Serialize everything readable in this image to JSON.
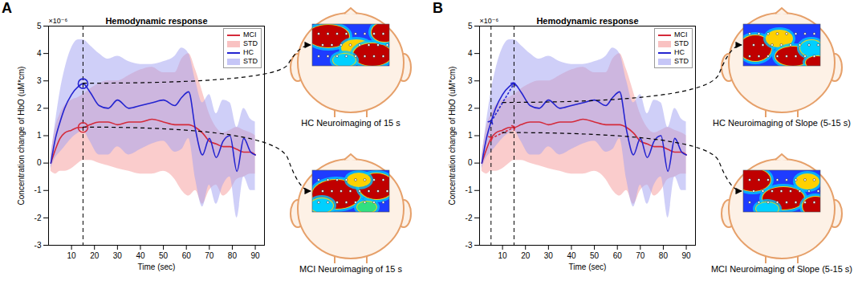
{
  "chart_data": [
    {
      "type": "line",
      "panel": "A",
      "title": "Hemodynamic response",
      "x_label": "Time (sec)",
      "y_label": "Concentration change of HbO (uM*cm)",
      "y_multiplier": "×10⁻⁶",
      "x": [
        1,
        3,
        5,
        7,
        10,
        13,
        15,
        18,
        22,
        26,
        30,
        35,
        40,
        45,
        50,
        55,
        58,
        61,
        64,
        67,
        70,
        73,
        76,
        79,
        82,
        85,
        88,
        90
      ],
      "xlim": [
        0,
        94
      ],
      "xticks": [
        10,
        20,
        30,
        40,
        50,
        60,
        70,
        80,
        90
      ],
      "ylim": [
        -3,
        5
      ],
      "yticks": [
        -3,
        -2,
        -1,
        0,
        1,
        2,
        3,
        4,
        5
      ],
      "legend": "top-right",
      "series": [
        {
          "name": "MCI",
          "color": "#d42a3a",
          "values": [
            0,
            0.5,
            0.9,
            1.1,
            1.2,
            1.3,
            1.3,
            1.4,
            1.5,
            1.5,
            1.4,
            1.5,
            1.5,
            1.6,
            1.5,
            1.4,
            1.4,
            1.4,
            1.3,
            1.1,
            0.8,
            0.7,
            0.6,
            0.6,
            0.5,
            0.4,
            0.4,
            0.3
          ],
          "std": {
            "name": "STD",
            "color": "#f59a9a",
            "lower": [
              -0.3,
              -0.4,
              -0.3,
              -0.3,
              -0.2,
              0,
              0.1,
              0.1,
              0,
              -0.1,
              -0.2,
              -0.3,
              -0.4,
              -0.4,
              -0.3,
              -0.6,
              -1.0,
              -1.2,
              -1.0,
              -1.5,
              -1.0,
              -0.8,
              -1.2,
              -1.0,
              -0.6,
              -0.5,
              -0.4,
              -0.4
            ],
            "upper": [
              0.3,
              1.3,
              1.8,
              2.1,
              2.3,
              2.4,
              2.5,
              2.7,
              2.9,
              3.0,
              3.0,
              3.2,
              3.4,
              3.5,
              3.3,
              3.3,
              3.8,
              4.0,
              3.4,
              2.6,
              1.8,
              1.3,
              1.1,
              1.2,
              1.3,
              1.2,
              1.1,
              1.0
            ]
          }
        },
        {
          "name": "HC",
          "color": "#2424d0",
          "values": [
            0,
            0.9,
            1.5,
            2.0,
            2.5,
            2.8,
            2.9,
            2.6,
            2.1,
            2.0,
            2.3,
            2.0,
            2.1,
            2.2,
            2.3,
            2.1,
            2.4,
            2.6,
            1.2,
            0.3,
            0.9,
            0.2,
            0.8,
            1.0,
            -0.3,
            0.9,
            0.4,
            0.3
          ],
          "std": {
            "name": "STD",
            "color": "#a0a0f2",
            "lower": [
              -0.2,
              0.2,
              0.4,
              0.6,
              0.9,
              1.1,
              1.2,
              0.8,
              0.3,
              0.3,
              0.6,
              0.3,
              0.5,
              0.7,
              0.8,
              0.4,
              0.5,
              0.9,
              -0.6,
              -1.6,
              -0.8,
              -1.5,
              -0.8,
              -0.5,
              -2.0,
              -0.5,
              -1.0,
              -1.0
            ],
            "upper": [
              0.2,
              1.5,
              2.6,
              3.4,
              4.2,
              4.5,
              4.5,
              4.3,
              4.0,
              3.8,
              3.9,
              3.7,
              3.6,
              3.6,
              3.7,
              3.9,
              4.2,
              4.0,
              3.0,
              2.2,
              2.5,
              1.8,
              2.3,
              2.2,
              1.3,
              2.0,
              1.6,
              1.5
            ]
          }
        }
      ],
      "highlight_x": [
        15
      ],
      "neuroimaging": [
        {
          "series": "HC",
          "label": "HC Neuroimaging of 15 s"
        },
        {
          "series": "MCI",
          "label": "MCI Neuroimaging of 15 s"
        }
      ]
    },
    {
      "type": "line",
      "panel": "B",
      "title": "Hemodynamic response",
      "x_label": "Time (sec)",
      "y_label": "Concentration change of HbO (uM*cm)",
      "y_multiplier": "×10⁻⁶",
      "x": [
        1,
        3,
        5,
        7,
        10,
        13,
        15,
        18,
        22,
        26,
        30,
        35,
        40,
        45,
        50,
        55,
        58,
        61,
        64,
        67,
        70,
        73,
        76,
        79,
        82,
        85,
        88,
        90
      ],
      "xlim": [
        0,
        94
      ],
      "xticks": [
        10,
        20,
        30,
        40,
        50,
        60,
        70,
        80,
        90
      ],
      "ylim": [
        -3,
        5
      ],
      "yticks": [
        -3,
        -2,
        -1,
        0,
        1,
        2,
        3,
        4,
        5
      ],
      "legend": "top-right",
      "series": [
        {
          "name": "MCI",
          "color": "#d42a3a",
          "values": [
            0,
            0.5,
            0.9,
            1.1,
            1.2,
            1.3,
            1.3,
            1.4,
            1.5,
            1.5,
            1.4,
            1.5,
            1.5,
            1.6,
            1.5,
            1.4,
            1.4,
            1.4,
            1.3,
            1.1,
            0.8,
            0.7,
            0.6,
            0.6,
            0.5,
            0.4,
            0.4,
            0.3
          ],
          "std": {
            "name": "STD",
            "color": "#f59a9a",
            "lower": [
              -0.3,
              -0.4,
              -0.3,
              -0.3,
              -0.2,
              0,
              0.1,
              0.1,
              0,
              -0.1,
              -0.2,
              -0.3,
              -0.4,
              -0.4,
              -0.3,
              -0.6,
              -1.0,
              -1.2,
              -1.0,
              -1.5,
              -1.0,
              -0.8,
              -1.2,
              -1.0,
              -0.6,
              -0.5,
              -0.4,
              -0.4
            ],
            "upper": [
              0.3,
              1.3,
              1.8,
              2.1,
              2.3,
              2.4,
              2.5,
              2.7,
              2.9,
              3.0,
              3.0,
              3.2,
              3.4,
              3.5,
              3.3,
              3.3,
              3.8,
              4.0,
              3.4,
              2.6,
              1.8,
              1.3,
              1.1,
              1.2,
              1.3,
              1.2,
              1.1,
              1.0
            ]
          }
        },
        {
          "name": "HC",
          "color": "#2424d0",
          "values": [
            0,
            0.9,
            1.5,
            2.0,
            2.5,
            2.8,
            2.9,
            2.6,
            2.1,
            2.0,
            2.3,
            2.0,
            2.1,
            2.2,
            2.3,
            2.1,
            2.4,
            2.6,
            1.2,
            0.3,
            0.9,
            0.2,
            0.8,
            1.0,
            -0.3,
            0.9,
            0.4,
            0.3
          ],
          "std": {
            "name": "STD",
            "color": "#a0a0f2",
            "lower": [
              -0.2,
              0.2,
              0.4,
              0.6,
              0.9,
              1.1,
              1.2,
              0.8,
              0.3,
              0.3,
              0.6,
              0.3,
              0.5,
              0.7,
              0.8,
              0.4,
              0.5,
              0.9,
              -0.6,
              -1.6,
              -0.8,
              -1.5,
              -0.8,
              -0.5,
              -2.0,
              -0.5,
              -1.0,
              -1.0
            ],
            "upper": [
              0.2,
              1.5,
              2.6,
              3.4,
              4.2,
              4.5,
              4.5,
              4.3,
              4.0,
              3.8,
              3.9,
              3.7,
              3.6,
              3.6,
              3.7,
              3.9,
              4.2,
              4.0,
              3.0,
              2.2,
              2.5,
              1.8,
              2.3,
              2.2,
              1.3,
              2.0,
              1.6,
              1.5
            ]
          }
        }
      ],
      "slope_x": [
        5,
        15
      ],
      "neuroimaging": [
        {
          "series": "HC",
          "label": "HC Neuroimaging of Slope (5-15 s)"
        },
        {
          "series": "MCI",
          "label": "MCI Neuroimaging of Slope (5-15 s)"
        }
      ]
    }
  ]
}
